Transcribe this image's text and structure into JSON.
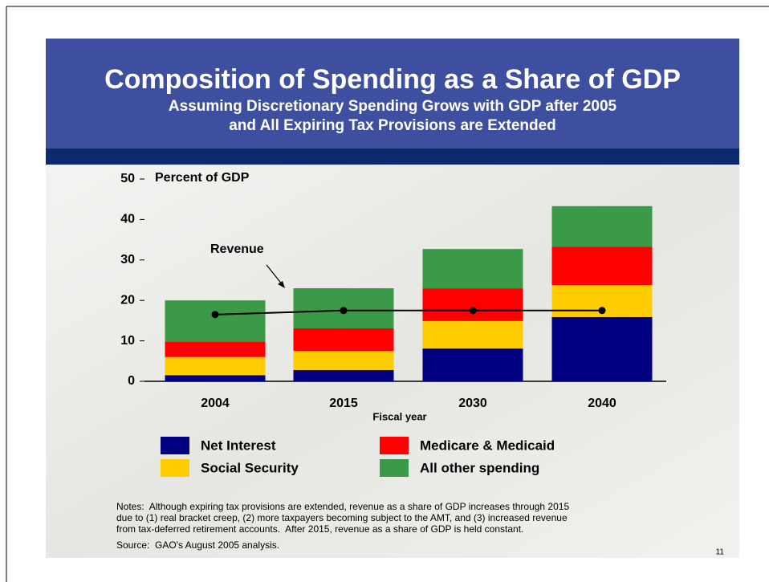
{
  "chart_data": {
    "type": "stacked_bar",
    "title": "Composition of Spending as a Share of GDP",
    "subtitle": [
      "Assuming Discretionary Spending Grows with GDP after 2005",
      "and All Expiring Tax Provisions are Extended"
    ],
    "y_label": "Percent of GDP",
    "x_label": "Fiscal year",
    "categories": [
      "2004",
      "2015",
      "2030",
      "2040"
    ],
    "series": [
      {
        "name": "Net Interest",
        "color": "#000080",
        "values": [
          1.5,
          2.8,
          8.1,
          15.9
        ]
      },
      {
        "name": "Social Security",
        "color": "#ffcc00",
        "values": [
          4.5,
          4.7,
          6.8,
          7.9
        ]
      },
      {
        "name": "Medicare & Medicaid",
        "color": "#ff0000",
        "values": [
          3.8,
          5.6,
          8.1,
          9.5
        ]
      },
      {
        "name": "All other spending",
        "color": "#3a9a48",
        "values": [
          10.2,
          9.9,
          9.7,
          10.0
        ]
      }
    ],
    "revenue": {
      "name": "Revenue",
      "color": "#000000",
      "values": [
        16.5,
        17.5,
        17.5,
        17.5
      ]
    },
    "ylim": [
      0,
      50
    ],
    "yticks": [
      0,
      10,
      20,
      30,
      40,
      50
    ],
    "notes": [
      "Notes:  Although expiring tax provisions are extended, revenue as a share of GDP increases through 2015",
      "due to (1) real bracket creep, (2) more taxpayers becoming subject to the AMT, and (3) increased revenue",
      "from tax-deferred retirement accounts.  After 2015, revenue as a share of GDP is held constant."
    ],
    "source": "Source:  GAO's August 2005 analysis.",
    "page_number": "11"
  }
}
